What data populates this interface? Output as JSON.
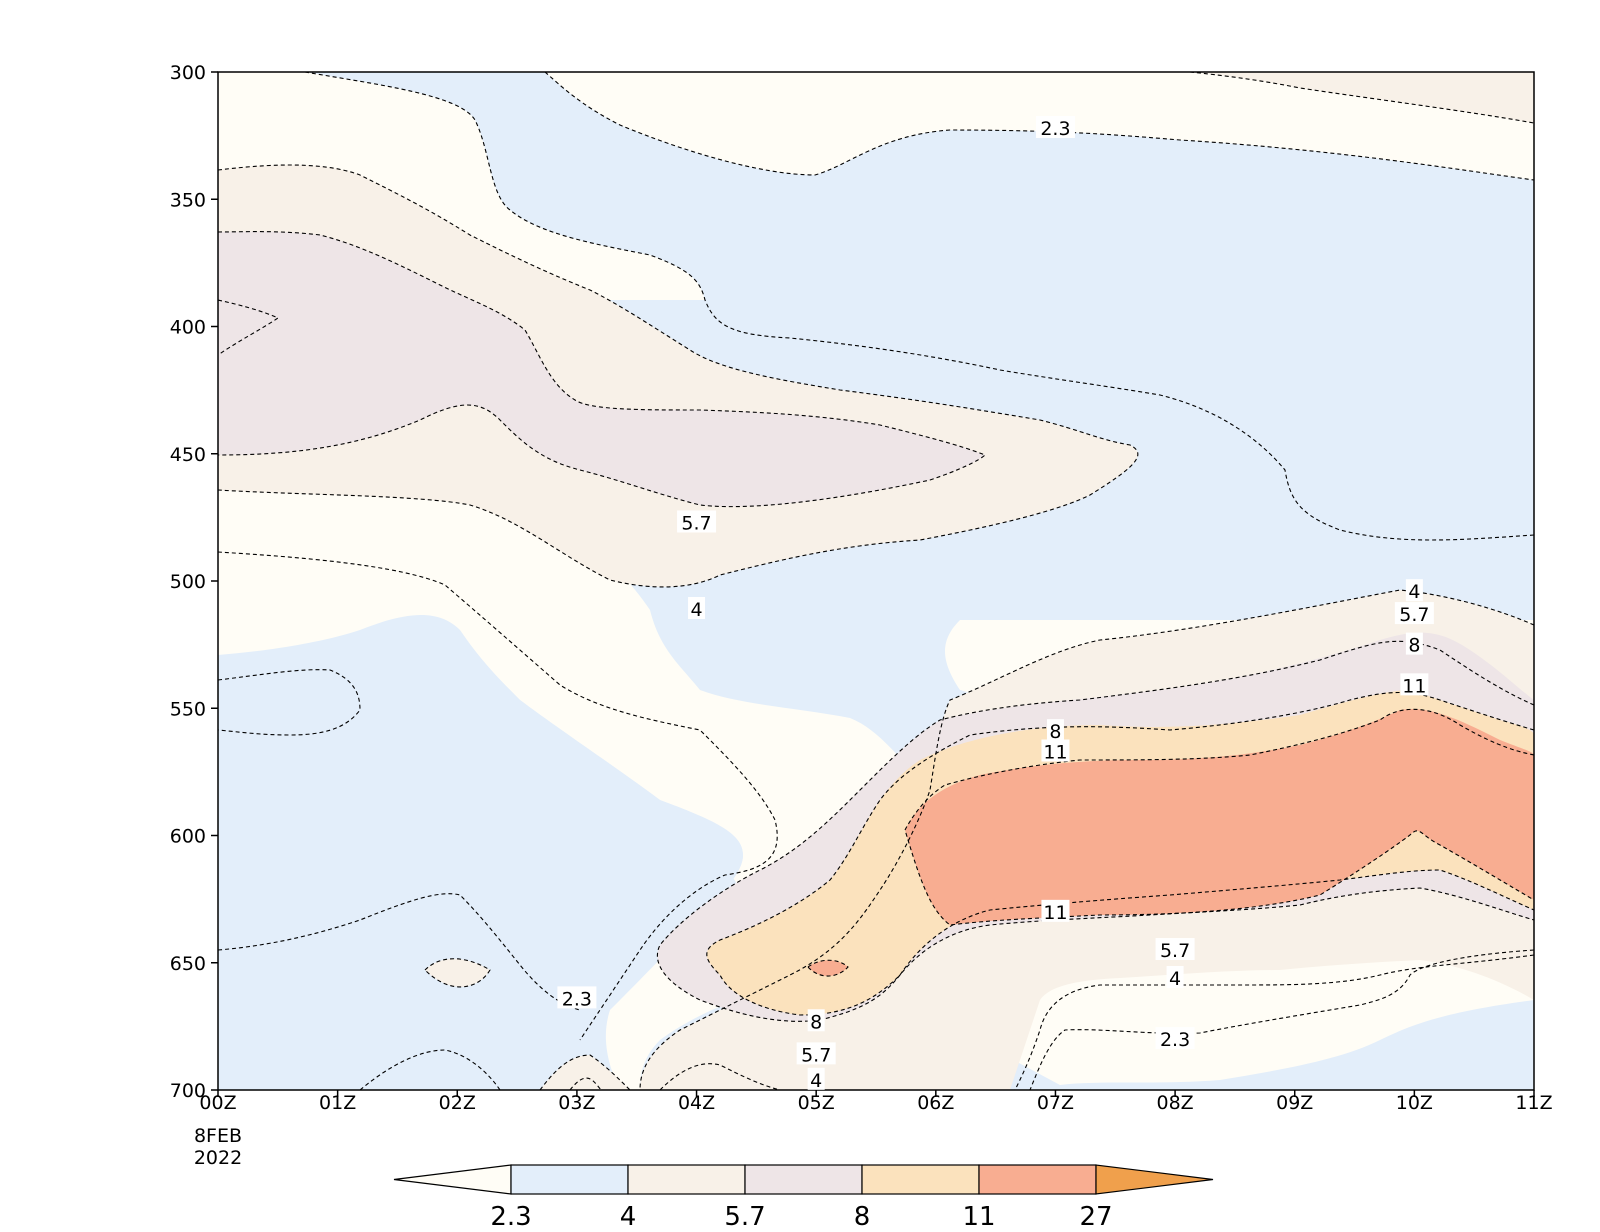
{
  "chart_data": {
    "type": "contour",
    "x_ticks": [
      "00Z",
      "01Z",
      "02Z",
      "03Z",
      "04Z",
      "05Z",
      "06Z",
      "07Z",
      "08Z",
      "09Z",
      "10Z",
      "11Z"
    ],
    "x_first_date_lines": [
      "8FEB",
      "2022"
    ],
    "y_ticks": [
      300,
      350,
      400,
      450,
      500,
      550,
      600,
      650,
      700
    ],
    "ylim": [
      700,
      300
    ],
    "xlim": [
      0,
      11
    ],
    "levels": [
      2.3,
      4,
      5.7,
      8,
      11,
      27
    ],
    "level_labels": [
      "2.3",
      "4",
      "5.7",
      "8",
      "11",
      "27"
    ],
    "colors": {
      "below": "#fffdf6",
      "b2_3_4": "#e3eefa",
      "b4_5_7": "#f8f1e8",
      "b5_7_8": "#eee5e7",
      "b8_11": "#fbe2bd",
      "b11_27": "#f8ad91",
      "above": "#f0a04c"
    },
    "contour_labels": [
      {
        "text": "2.3",
        "x": 7.0,
        "y": 322
      },
      {
        "text": "5.7",
        "x": 4.0,
        "y": 477
      },
      {
        "text": "4",
        "x": 4.0,
        "y": 511
      },
      {
        "text": "4",
        "x": 10.0,
        "y": 504
      },
      {
        "text": "5.7",
        "x": 10.0,
        "y": 513
      },
      {
        "text": "8",
        "x": 10.0,
        "y": 525
      },
      {
        "text": "11",
        "x": 10.0,
        "y": 541
      },
      {
        "text": "8",
        "x": 7.0,
        "y": 559
      },
      {
        "text": "11",
        "x": 7.0,
        "y": 567
      },
      {
        "text": "11",
        "x": 7.0,
        "y": 630
      },
      {
        "text": "5.7",
        "x": 8.0,
        "y": 645
      },
      {
        "text": "4",
        "x": 8.0,
        "y": 656
      },
      {
        "text": "2.3",
        "x": 3.0,
        "y": 664
      },
      {
        "text": "2.3",
        "x": 8.0,
        "y": 680
      },
      {
        "text": "8",
        "x": 5.0,
        "y": 673
      },
      {
        "text": "5.7",
        "x": 5.0,
        "y": 686
      },
      {
        "text": "4",
        "x": 5.0,
        "y": 696
      }
    ],
    "grid": false,
    "legend": "colorbar-bottom"
  }
}
